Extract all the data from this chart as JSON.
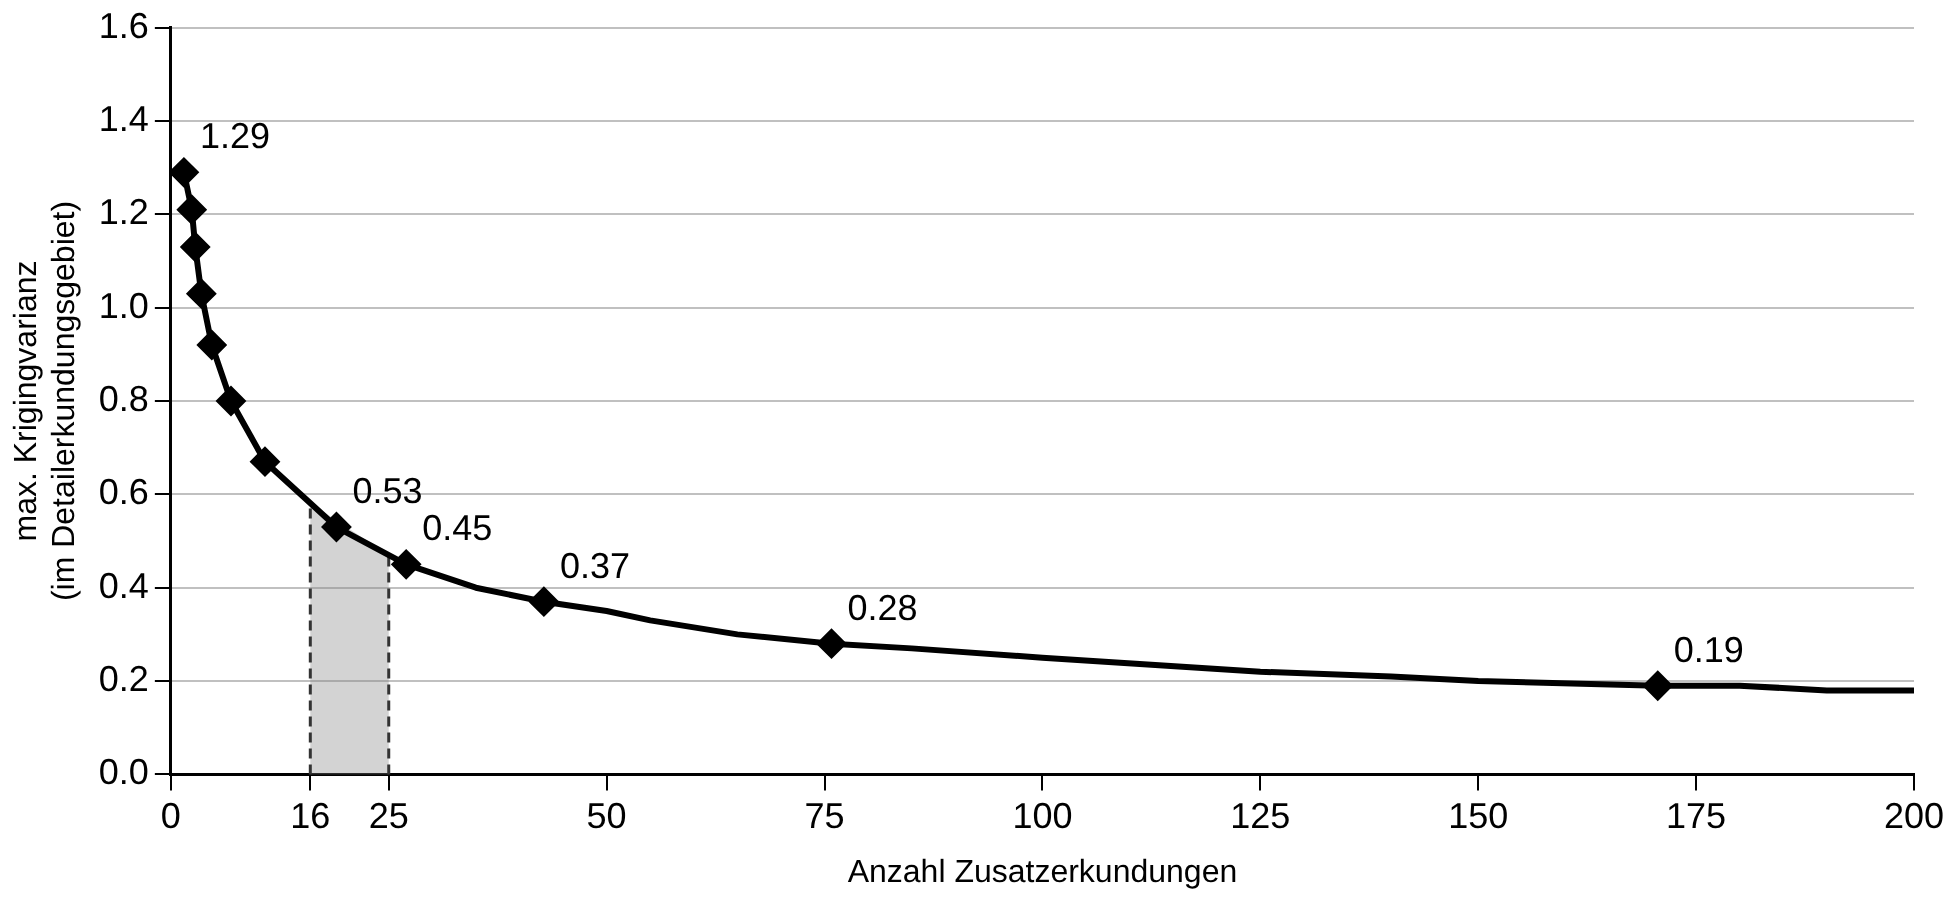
{
  "chart_data": {
    "type": "line",
    "xlabel": "Anzahl Zusatzerkundungen",
    "ylabel": "max. Krigingvarianz\n(im Detailerkundungsgebiet)",
    "xlim": [
      0,
      200
    ],
    "xticks": [
      0,
      16,
      25,
      50,
      75,
      100,
      125,
      150,
      175,
      200
    ],
    "ylim": [
      0,
      1.6
    ],
    "yticks": [
      {
        "value": 0,
        "label": "0.0"
      },
      0.2,
      0.4,
      0.6,
      0.8,
      {
        "value": 1,
        "label": "1.0"
      },
      1.2,
      1.4,
      1.6
    ],
    "grid": "y",
    "legend": false,
    "series": [
      {
        "type": "line",
        "color": "#000000",
        "marker": "none",
        "x": [
          1.5,
          2.4,
          2.8,
          3.5,
          4.7,
          6.9,
          10.8,
          19,
          27,
          35,
          42.8,
          50,
          55,
          65,
          75.8,
          85,
          100,
          125,
          140,
          150,
          170.6,
          180,
          190,
          200
        ],
        "values": [
          1.29,
          1.21,
          1.13,
          1.03,
          0.92,
          0.8,
          0.67,
          0.53,
          0.45,
          0.4,
          0.37,
          0.35,
          0.33,
          0.3,
          0.28,
          0.27,
          0.25,
          0.22,
          0.21,
          0.2,
          0.19,
          0.19,
          0.18,
          0.18
        ]
      },
      {
        "type": "scatter",
        "color": "#000000",
        "marker": "diamond",
        "x": [
          1.5,
          2.4,
          2.8,
          3.5,
          4.7,
          6.9,
          10.8,
          19,
          27,
          42.8,
          75.8,
          170.6
        ],
        "values": [
          1.29,
          1.21,
          1.13,
          1.03,
          0.92,
          0.8,
          0.67,
          0.53,
          0.45,
          0.37,
          0.28,
          0.19
        ],
        "value_labels": [
          "1.29",
          null,
          null,
          null,
          null,
          null,
          null,
          "0.53",
          "0.45",
          "0.37",
          "0.28",
          "0.19"
        ]
      }
    ],
    "bands": [
      {
        "axis": "x",
        "from": 16,
        "to": 25,
        "color": "#808080"
      }
    ]
  }
}
